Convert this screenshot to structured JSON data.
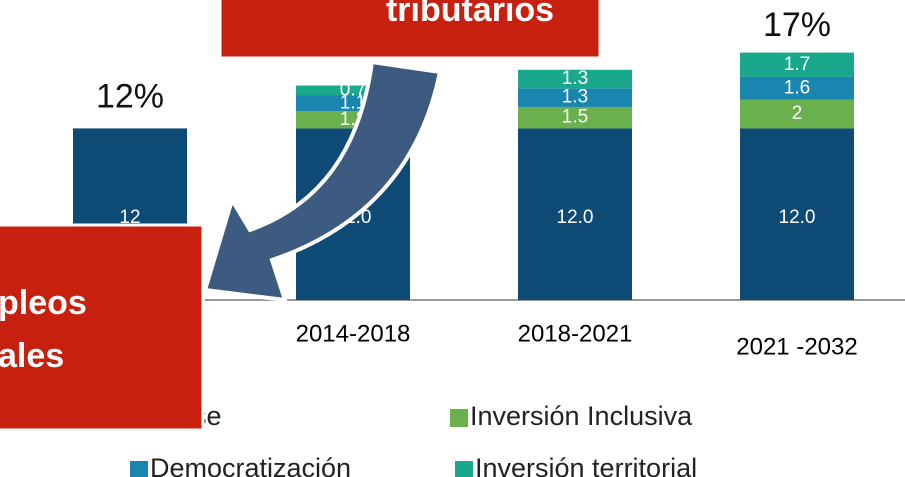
{
  "chart_data": {
    "type": "stacked-bar",
    "categories": [
      null,
      "2014-2018",
      "2018-2021",
      "2021 -2032"
    ],
    "series": [
      {
        "name": "Base",
        "color": "#0d4a75",
        "values": [
          12,
          12,
          12,
          12
        ],
        "value_labels": [
          "12",
          "12.0",
          "12.0",
          "12.0"
        ]
      },
      {
        "name": "Inversión Inclusiva",
        "color": "#6ab04c",
        "values": [
          null,
          1.2,
          1.5,
          2.0
        ]
      },
      {
        "name": "Democratización",
        "color": "#1a86b0",
        "values": [
          null,
          1.1,
          1.3,
          1.6
        ]
      },
      {
        "name": "Inversión territorial",
        "color": "#1aa88c",
        "values": [
          null,
          0.7,
          1.3,
          1.7
        ]
      }
    ],
    "totals": [
      12,
      null,
      null,
      17
    ],
    "total_labels": [
      "12%",
      null,
      null,
      "17%"
    ]
  },
  "annotations": {
    "top_box": "tributarios",
    "left_box": [
      "pleos",
      "ales"
    ]
  }
}
